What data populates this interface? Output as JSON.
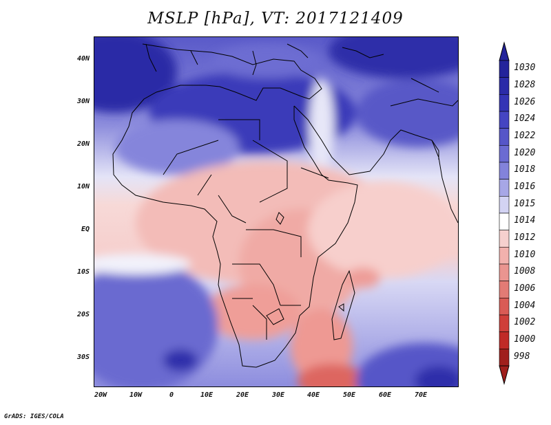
{
  "title": "MSLP [hPa], VT: 2017121409",
  "axes": {
    "lat_labels": [
      "40N",
      "30N",
      "20N",
      "10N",
      "EQ",
      "10S",
      "20S",
      "30S"
    ],
    "lon_labels": [
      "20W",
      "10W",
      "0",
      "10E",
      "20E",
      "30E",
      "40E",
      "50E",
      "60E",
      "70E"
    ]
  },
  "colorbar": {
    "levels": [
      "1030",
      "1028",
      "1026",
      "1024",
      "1022",
      "1020",
      "1018",
      "1016",
      "1015",
      "1014",
      "1012",
      "1010",
      "1008",
      "1006",
      "1004",
      "1002",
      "1000",
      "998"
    ],
    "colors": [
      "#23239b",
      "#2b2ba8",
      "#3434b5",
      "#4545c2",
      "#5656c8",
      "#6b6bd2",
      "#8383db",
      "#a7a7e6",
      "#d3d3f3",
      "#ffffff",
      "#f6d0ce",
      "#f2b1ad",
      "#ea9590",
      "#e27b75",
      "#d95b55",
      "#cf3f3a",
      "#c02a27",
      "#a01f1c"
    ]
  },
  "credit": "GrADS: IGES/COLA"
}
